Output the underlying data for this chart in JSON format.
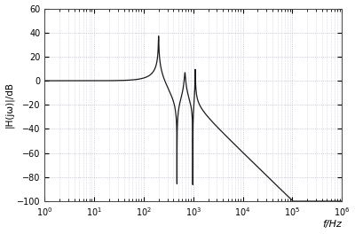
{
  "title": "",
  "xlabel": "f/Hz",
  "ylabel": "|H(jω)|/dB",
  "xmin": 1,
  "xmax": 1000000,
  "ymin": -100,
  "ymax": 60,
  "yticks": [
    -100,
    -80,
    -60,
    -40,
    -20,
    0,
    20,
    40,
    60
  ],
  "background_color": "#ffffff",
  "line_color": "#1a1a1a",
  "grid_color": "#b8b8cc",
  "figsize": [
    4.0,
    2.64
  ],
  "dpi": 100,
  "f_res1": 200,
  "Q1": 80,
  "f_zero1": 470,
  "f_res2": 680,
  "Q2": 25,
  "f_zero2": 980,
  "f_res3": 1100,
  "Q3": 120,
  "K_hf_dB": -30
}
